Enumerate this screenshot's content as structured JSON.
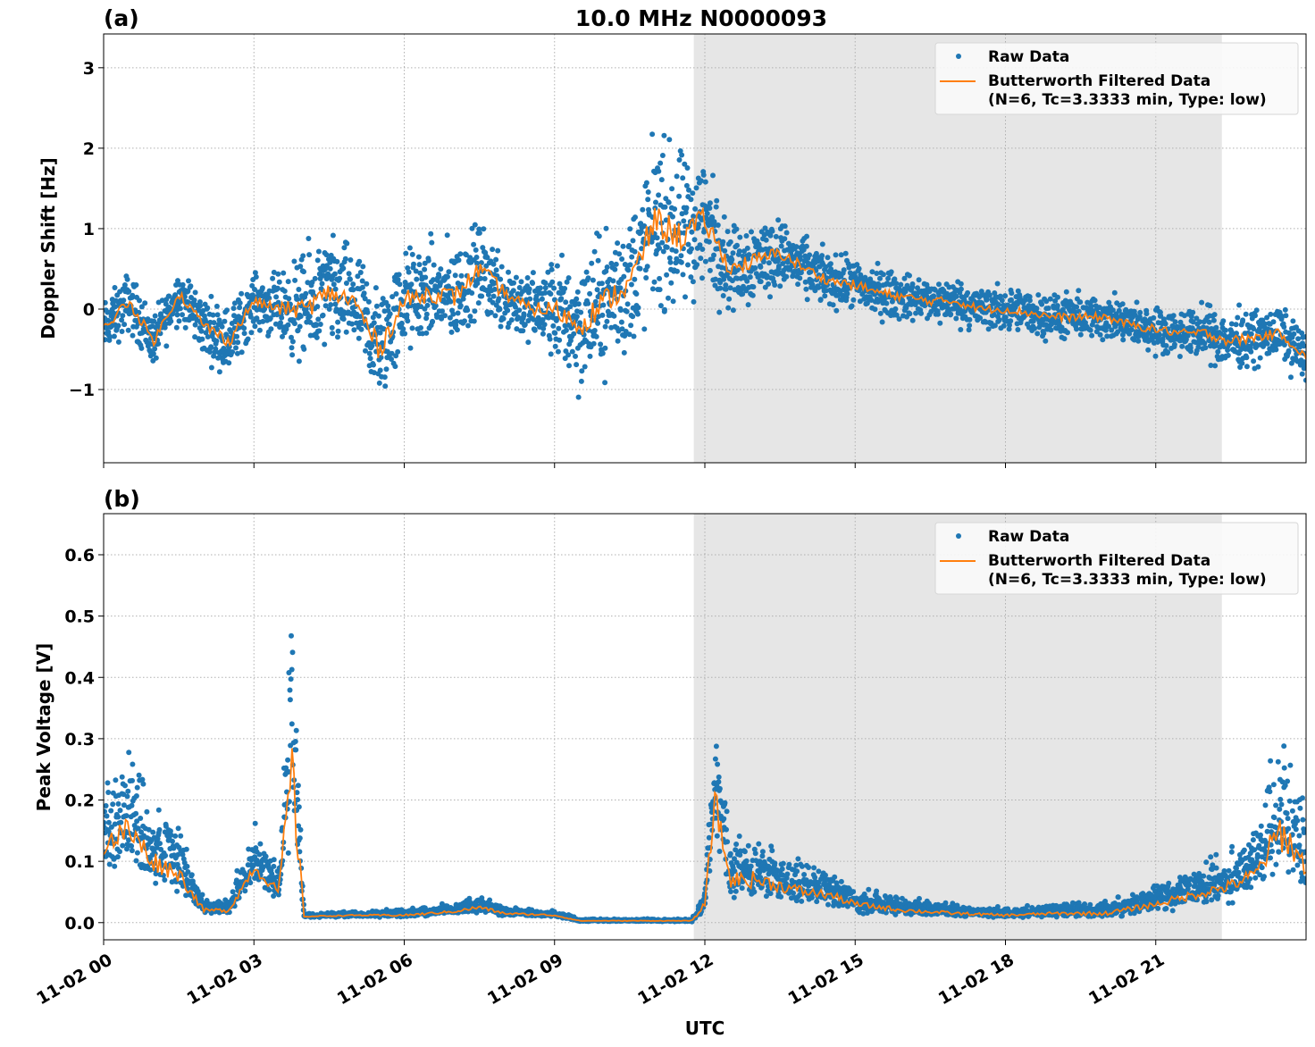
{
  "colors": {
    "raw": "#1f77b4",
    "filtered": "#ff7f0e",
    "shade": "#e6e6e6",
    "grid": "#b0b0b0"
  },
  "chart_data": [
    {
      "type": "scatter+line",
      "panel_label": "(a)",
      "title": "10.0 MHz N0000093",
      "xlabel": "",
      "ylabel": "Doppler Shift [Hz]",
      "xlim_hours": [
        0,
        24
      ],
      "ylim": [
        -1.91,
        3.42
      ],
      "yticks": [
        3,
        2,
        1,
        0,
        -1
      ],
      "ytick_labels": [
        "3",
        "2",
        "1",
        "0",
        "−1"
      ],
      "grid": true,
      "legend_position": "top-right",
      "legend": [
        "Raw Data",
        "Butterworth Filtered Data",
        "(N=6, Tc=3.3333 min, Type: low)"
      ],
      "shaded_span_hours": [
        11.78,
        22.32
      ],
      "x_hours": [
        0,
        0.5,
        1,
        1.5,
        2,
        2.5,
        3,
        3.5,
        4,
        4.5,
        5,
        5.5,
        6,
        6.5,
        7,
        7.5,
        8,
        8.5,
        9,
        9.5,
        10,
        10.5,
        11,
        11.5,
        12,
        12.5,
        13,
        13.5,
        14,
        14.5,
        15,
        15.5,
        16,
        16.5,
        17,
        17.5,
        18,
        18.5,
        19,
        19.5,
        20,
        20.5,
        21,
        21.5,
        22,
        22.5,
        23,
        23.5,
        24
      ],
      "series": [
        {
          "name": "Butterworth Filtered Data",
          "values": [
            -0.25,
            0.1,
            -0.4,
            0.2,
            -0.2,
            -0.4,
            0.1,
            0.0,
            0.0,
            0.2,
            0.1,
            -0.5,
            0.1,
            0.2,
            0.15,
            0.5,
            0.2,
            0.0,
            0.0,
            -0.2,
            0.1,
            0.3,
            1.1,
            0.9,
            1.1,
            0.5,
            0.6,
            0.7,
            0.5,
            0.35,
            0.3,
            0.2,
            0.15,
            0.1,
            0.1,
            0.0,
            0.0,
            -0.05,
            -0.1,
            -0.1,
            -0.1,
            -0.2,
            -0.25,
            -0.3,
            -0.3,
            -0.4,
            -0.35,
            -0.3,
            -0.6
          ]
        },
        {
          "name": "Raw Data",
          "spread": [
            0.35,
            0.4,
            0.35,
            0.35,
            0.4,
            0.45,
            0.35,
            0.45,
            0.75,
            0.75,
            0.7,
            0.8,
            0.7,
            0.65,
            0.7,
            0.6,
            0.55,
            0.45,
            0.7,
            0.9,
            0.9,
            1.0,
            1.1,
            1.1,
            0.9,
            0.55,
            0.6,
            0.45,
            0.4,
            0.35,
            0.35,
            0.35,
            0.3,
            0.3,
            0.3,
            0.3,
            0.3,
            0.3,
            0.3,
            0.3,
            0.3,
            0.3,
            0.3,
            0.3,
            0.35,
            0.4,
            0.35,
            0.35,
            0.35
          ]
        }
      ]
    },
    {
      "type": "scatter+line",
      "panel_label": "(b)",
      "xlabel": "UTC",
      "ylabel": "Peak Voltage [V]",
      "xlim_hours": [
        0,
        24
      ],
      "ylim": [
        -0.028,
        0.667
      ],
      "yticks": [
        0.0,
        0.1,
        0.2,
        0.3,
        0.4,
        0.5,
        0.6
      ],
      "ytick_labels": [
        "0.0",
        "0.1",
        "0.2",
        "0.3",
        "0.4",
        "0.5",
        "0.6"
      ],
      "xtick_labels": [
        "11-02 00",
        "11-02 03",
        "11-02 06",
        "11-02 09",
        "11-02 12",
        "11-02 15",
        "11-02 18",
        "11-02 21"
      ],
      "xtick_hours": [
        0,
        3,
        6,
        9,
        12,
        15,
        18,
        21
      ],
      "grid": true,
      "legend_position": "top-right",
      "legend": [
        "Raw Data",
        "Butterworth Filtered Data",
        "(N=6, Tc=3.3333 min, Type: low)"
      ],
      "shaded_span_hours": [
        11.78,
        22.32
      ],
      "x_hours": [
        0,
        0.5,
        1,
        1.5,
        2,
        2.5,
        3,
        3.5,
        3.75,
        4,
        5,
        6,
        7,
        7.5,
        8,
        9,
        9.5,
        10,
        11,
        11.75,
        12,
        12.2,
        12.5,
        13,
        13.5,
        14,
        14.5,
        15,
        16,
        17,
        18,
        19,
        20,
        21,
        22,
        22.5,
        23,
        23.5,
        24
      ],
      "series": [
        {
          "name": "Butterworth Filtered Data",
          "values": [
            0.13,
            0.15,
            0.1,
            0.08,
            0.02,
            0.02,
            0.09,
            0.05,
            0.25,
            0.01,
            0.012,
            0.012,
            0.018,
            0.025,
            0.015,
            0.012,
            0.003,
            0.003,
            0.003,
            0.003,
            0.03,
            0.2,
            0.07,
            0.07,
            0.06,
            0.05,
            0.045,
            0.03,
            0.02,
            0.015,
            0.012,
            0.015,
            0.015,
            0.03,
            0.05,
            0.06,
            0.08,
            0.15,
            0.09
          ]
        },
        {
          "name": "Raw Data",
          "spread": [
            0.12,
            0.15,
            0.1,
            0.08,
            0.02,
            0.02,
            0.06,
            0.04,
            0.35,
            0.005,
            0.006,
            0.01,
            0.012,
            0.02,
            0.01,
            0.008,
            0.003,
            0.003,
            0.003,
            0.003,
            0.03,
            0.15,
            0.08,
            0.08,
            0.06,
            0.05,
            0.04,
            0.03,
            0.02,
            0.015,
            0.012,
            0.015,
            0.02,
            0.03,
            0.05,
            0.06,
            0.07,
            0.2,
            0.08
          ]
        }
      ]
    }
  ]
}
